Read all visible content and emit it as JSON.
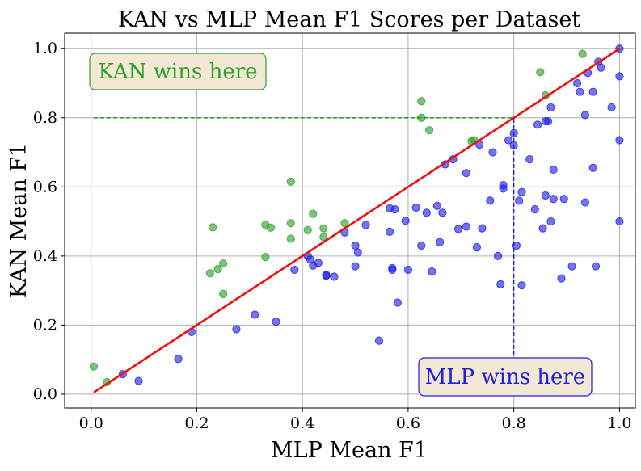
{
  "chart_data": {
    "type": "scatter",
    "title": "KAN vs MLP Mean F1 Scores per Dataset",
    "xlabel": "MLP Mean F1",
    "ylabel": "KAN Mean F1",
    "xlim": [
      -0.05,
      1.03
    ],
    "ylim": [
      -0.04,
      1.045
    ],
    "xticks": [
      0.0,
      0.2,
      0.4,
      0.6,
      0.8,
      1.0
    ],
    "yticks": [
      0.0,
      0.2,
      0.4,
      0.6,
      0.8,
      1.0
    ],
    "xtick_labels": [
      "0.0",
      "0.2",
      "0.4",
      "0.6",
      "0.8",
      "1.0"
    ],
    "ytick_labels": [
      "0.0",
      "0.2",
      "0.4",
      "0.6",
      "0.8",
      "1.0"
    ],
    "grid": true,
    "colors": {
      "kan_wins": "#2ca02c",
      "mlp_wins": "#1f1fe0",
      "diagonal": "#ee1111",
      "annotation_bg": "#f3e8d4"
    },
    "annotations": {
      "kan": "KAN wins here",
      "mlp": "MLP wins here"
    },
    "reference_lines": [
      {
        "type": "diagonal",
        "from": [
          0.005,
          0.005
        ],
        "to": [
          1.0,
          1.0
        ],
        "color": "red"
      },
      {
        "type": "horizontal",
        "y": 0.8,
        "x_from": 0.005,
        "x_to": 0.8,
        "style": "dashed",
        "color": "green"
      },
      {
        "type": "vertical",
        "x": 0.8,
        "y_from": 0.0,
        "y_to": 0.8,
        "style": "dashed",
        "color": "blue"
      }
    ],
    "series": [
      {
        "name": "KAN wins",
        "color": "green",
        "points": [
          [
            0.005,
            0.08
          ],
          [
            0.03,
            0.035
          ],
          [
            0.225,
            0.35
          ],
          [
            0.23,
            0.483
          ],
          [
            0.24,
            0.362
          ],
          [
            0.25,
            0.29
          ],
          [
            0.25,
            0.378
          ],
          [
            0.33,
            0.397
          ],
          [
            0.33,
            0.49
          ],
          [
            0.34,
            0.482
          ],
          [
            0.378,
            0.615
          ],
          [
            0.378,
            0.45
          ],
          [
            0.378,
            0.495
          ],
          [
            0.41,
            0.475
          ],
          [
            0.42,
            0.522
          ],
          [
            0.44,
            0.48
          ],
          [
            0.44,
            0.455
          ],
          [
            0.48,
            0.495
          ],
          [
            0.625,
            0.848
          ],
          [
            0.625,
            0.8
          ],
          [
            0.64,
            0.764
          ],
          [
            0.72,
            0.732
          ],
          [
            0.725,
            0.735
          ],
          [
            0.85,
            0.932
          ],
          [
            0.86,
            0.865
          ],
          [
            0.93,
            0.985
          ]
        ]
      },
      {
        "name": "MLP wins",
        "color": "blue",
        "points": [
          [
            0.06,
            0.058
          ],
          [
            0.09,
            0.038
          ],
          [
            0.165,
            0.102
          ],
          [
            0.19,
            0.18
          ],
          [
            0.275,
            0.188
          ],
          [
            0.31,
            0.23
          ],
          [
            0.35,
            0.21
          ],
          [
            0.385,
            0.36
          ],
          [
            0.41,
            0.4
          ],
          [
            0.415,
            0.39
          ],
          [
            0.42,
            0.372
          ],
          [
            0.43,
            0.38
          ],
          [
            0.445,
            0.345
          ],
          [
            0.445,
            0.343
          ],
          [
            0.46,
            0.34
          ],
          [
            0.48,
            0.468
          ],
          [
            0.5,
            0.43
          ],
          [
            0.5,
            0.37
          ],
          [
            0.505,
            0.41
          ],
          [
            0.52,
            0.49
          ],
          [
            0.545,
            0.155
          ],
          [
            0.565,
            0.538
          ],
          [
            0.565,
            0.47
          ],
          [
            0.57,
            0.365
          ],
          [
            0.57,
            0.36
          ],
          [
            0.575,
            0.535
          ],
          [
            0.58,
            0.265
          ],
          [
            0.595,
            0.502
          ],
          [
            0.6,
            0.36
          ],
          [
            0.615,
            0.54
          ],
          [
            0.625,
            0.43
          ],
          [
            0.635,
            0.525
          ],
          [
            0.645,
            0.355
          ],
          [
            0.655,
            0.545
          ],
          [
            0.66,
            0.44
          ],
          [
            0.665,
            0.525
          ],
          [
            0.67,
            0.665
          ],
          [
            0.685,
            0.68
          ],
          [
            0.695,
            0.478
          ],
          [
            0.71,
            0.485
          ],
          [
            0.71,
            0.64
          ],
          [
            0.73,
            0.425
          ],
          [
            0.735,
            0.722
          ],
          [
            0.74,
            0.48
          ],
          [
            0.755,
            0.56
          ],
          [
            0.76,
            0.7
          ],
          [
            0.77,
            0.4
          ],
          [
            0.775,
            0.318
          ],
          [
            0.78,
            0.595
          ],
          [
            0.78,
            0.605
          ],
          [
            0.79,
            0.735
          ],
          [
            0.8,
            0.755
          ],
          [
            0.8,
            0.72
          ],
          [
            0.805,
            0.43
          ],
          [
            0.81,
            0.56
          ],
          [
            0.815,
            0.585
          ],
          [
            0.815,
            0.315
          ],
          [
            0.83,
            0.68
          ],
          [
            0.84,
            0.535
          ],
          [
            0.845,
            0.78
          ],
          [
            0.855,
            0.48
          ],
          [
            0.86,
            0.79
          ],
          [
            0.86,
            0.575
          ],
          [
            0.865,
            0.79
          ],
          [
            0.87,
            0.5
          ],
          [
            0.87,
            0.83
          ],
          [
            0.875,
            0.565
          ],
          [
            0.875,
            0.65
          ],
          [
            0.89,
            0.335
          ],
          [
            0.895,
            0.565
          ],
          [
            0.91,
            0.37
          ],
          [
            0.92,
            0.9
          ],
          [
            0.925,
            0.875
          ],
          [
            0.935,
            0.808
          ],
          [
            0.935,
            0.555
          ],
          [
            0.94,
            0.93
          ],
          [
            0.95,
            0.875
          ],
          [
            0.95,
            0.655
          ],
          [
            0.955,
            0.37
          ],
          [
            0.96,
            0.962
          ],
          [
            0.965,
            0.945
          ],
          [
            0.985,
            0.83
          ],
          [
            1.0,
            1.0
          ],
          [
            1.0,
            0.92
          ],
          [
            1.0,
            0.735
          ],
          [
            1.0,
            0.5
          ]
        ]
      }
    ]
  }
}
